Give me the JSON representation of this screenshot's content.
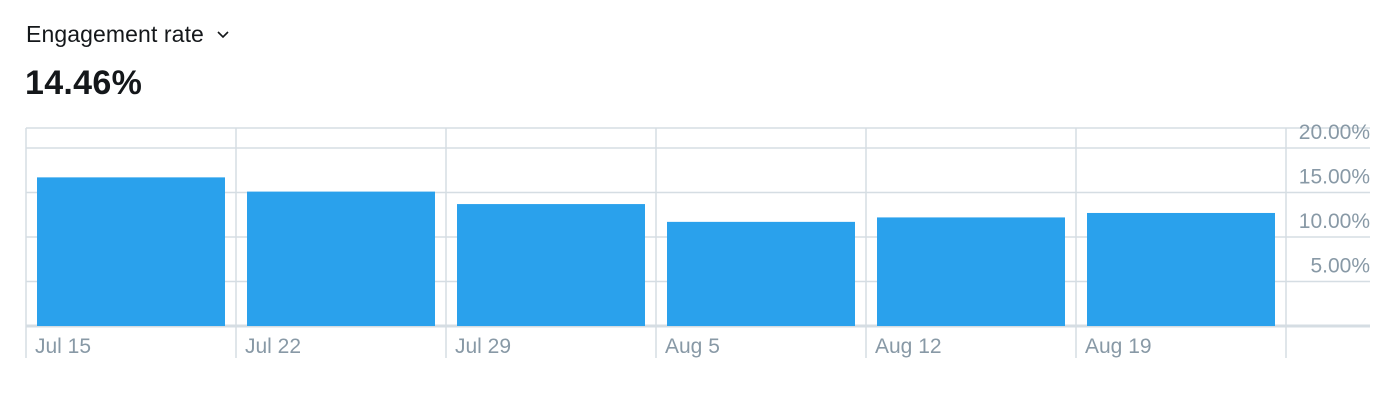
{
  "metric": {
    "label": "Engagement rate",
    "value": "14.46%"
  },
  "colors": {
    "bar": "#2aa1ec",
    "grid": "#d5dde3",
    "axis_text": "#8899a6"
  },
  "icons": {
    "dropdown": "chevron-down-icon"
  },
  "chart_data": {
    "type": "bar",
    "categories": [
      "Jul 15",
      "Jul 22",
      "Jul 29",
      "Aug 5",
      "Aug 12",
      "Aug 19"
    ],
    "values": [
      16.7,
      15.1,
      13.7,
      11.7,
      12.2,
      12.7
    ],
    "y_ticks": [
      "20.00%",
      "15.00%",
      "10.00%",
      "5.00%"
    ],
    "y_tick_values": [
      20,
      15,
      10,
      5
    ],
    "ylim": [
      0,
      20
    ],
    "ylabel_position": "right",
    "grid": true
  }
}
